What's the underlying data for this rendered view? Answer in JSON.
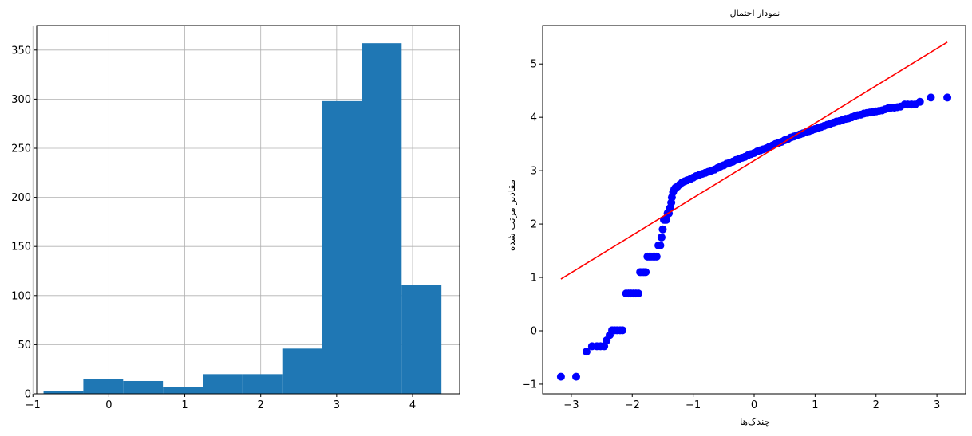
{
  "chart_data": [
    {
      "type": "bar",
      "kind": "histogram",
      "title": "",
      "xlabel": "",
      "ylabel": "",
      "grid": true,
      "xlim": [
        -0.95,
        4.62
      ],
      "ylim": [
        0,
        375
      ],
      "xticks": [
        -1,
        0,
        1,
        2,
        3,
        4
      ],
      "xtick_labels": [
        "−1",
        "0",
        "1",
        "2",
        "3",
        "4"
      ],
      "yticks": [
        0,
        50,
        100,
        150,
        200,
        250,
        300,
        350
      ],
      "ytick_labels": [
        "0",
        "50",
        "100",
        "150",
        "200",
        "250",
        "300",
        "350"
      ],
      "color": "#1f77b4",
      "bin_edges": [
        -0.86,
        -0.336,
        0.188,
        0.712,
        1.236,
        1.76,
        2.284,
        2.808,
        3.332,
        3.856,
        4.38
      ],
      "values": [
        3,
        15,
        13,
        7,
        20,
        20,
        46,
        298,
        357,
        111
      ]
    },
    {
      "type": "scatter",
      "kind": "probability-plot",
      "title": "نمودار احتمال",
      "xlabel": "چندک‌ها",
      "ylabel": "مقادیر مرتب شده",
      "grid": false,
      "xlim": [
        -3.47,
        3.47
      ],
      "ylim": [
        -1.18,
        5.72
      ],
      "xticks": [
        -3,
        -2,
        -1,
        0,
        1,
        2,
        3
      ],
      "xtick_labels": [
        "−3",
        "−2",
        "−1",
        "0",
        "1",
        "2",
        "3"
      ],
      "yticks": [
        -1,
        0,
        1,
        2,
        3,
        4,
        5
      ],
      "ytick_labels": [
        "−1",
        "0",
        "1",
        "2",
        "3",
        "4",
        "5"
      ],
      "marker_color": "#0000ff",
      "line_color": "#ff0000",
      "fit_line": {
        "x": [
          -3.17,
          3.17
        ],
        "y": [
          0.97,
          5.41
        ]
      },
      "points": [
        [
          -3.17,
          -0.86
        ],
        [
          -2.92,
          -0.86
        ],
        [
          -2.75,
          -0.39
        ],
        [
          -2.66,
          -0.29
        ],
        [
          -2.58,
          -0.29
        ],
        [
          -2.52,
          -0.29
        ],
        [
          -2.46,
          -0.29
        ],
        [
          -2.42,
          -0.18
        ],
        [
          -2.37,
          -0.08
        ],
        [
          -2.33,
          0.01
        ],
        [
          -2.29,
          0.01
        ],
        [
          -2.25,
          0.01
        ],
        [
          -2.2,
          0.01
        ],
        [
          -2.16,
          0.01
        ],
        [
          -2.1,
          0.7
        ],
        [
          -2.06,
          0.7
        ],
        [
          -2.02,
          0.7
        ],
        [
          -1.98,
          0.7
        ],
        [
          -1.94,
          0.7
        ],
        [
          -1.9,
          0.7
        ],
        [
          -1.87,
          1.1
        ],
        [
          -1.84,
          1.1
        ],
        [
          -1.81,
          1.1
        ],
        [
          -1.78,
          1.1
        ],
        [
          -1.75,
          1.39
        ],
        [
          -1.72,
          1.39
        ],
        [
          -1.69,
          1.39
        ],
        [
          -1.66,
          1.39
        ],
        [
          -1.63,
          1.39
        ],
        [
          -1.6,
          1.39
        ],
        [
          -1.57,
          1.6
        ],
        [
          -1.54,
          1.6
        ],
        [
          -1.52,
          1.75
        ],
        [
          -1.5,
          1.9
        ],
        [
          -1.48,
          2.08
        ],
        [
          -1.46,
          2.08
        ],
        [
          -1.44,
          2.08
        ],
        [
          -1.42,
          2.2
        ],
        [
          -1.4,
          2.2
        ],
        [
          -1.38,
          2.3
        ],
        [
          -1.36,
          2.4
        ],
        [
          -1.35,
          2.5
        ],
        [
          -1.33,
          2.6
        ],
        [
          -1.31,
          2.65
        ],
        [
          -1.29,
          2.68
        ],
        [
          -1.26,
          2.7
        ],
        [
          -1.22,
          2.74
        ],
        [
          -1.18,
          2.78
        ],
        [
          -1.14,
          2.8
        ],
        [
          -1.1,
          2.82
        ],
        [
          -1.05,
          2.84
        ],
        [
          -1.0,
          2.87
        ],
        [
          -0.95,
          2.9
        ],
        [
          -0.9,
          2.92
        ],
        [
          -0.85,
          2.94
        ],
        [
          -0.8,
          2.96
        ],
        [
          -0.75,
          2.98
        ],
        [
          -0.7,
          3.0
        ],
        [
          -0.65,
          3.02
        ],
        [
          -0.6,
          3.05
        ],
        [
          -0.55,
          3.08
        ],
        [
          -0.5,
          3.1
        ],
        [
          -0.45,
          3.13
        ],
        [
          -0.4,
          3.15
        ],
        [
          -0.35,
          3.17
        ],
        [
          -0.3,
          3.2
        ],
        [
          -0.25,
          3.22
        ],
        [
          -0.2,
          3.24
        ],
        [
          -0.15,
          3.26
        ],
        [
          -0.1,
          3.29
        ],
        [
          -0.05,
          3.31
        ],
        [
          0.0,
          3.33
        ],
        [
          0.05,
          3.36
        ],
        [
          0.1,
          3.38
        ],
        [
          0.15,
          3.4
        ],
        [
          0.2,
          3.42
        ],
        [
          0.25,
          3.45
        ],
        [
          0.3,
          3.47
        ],
        [
          0.35,
          3.5
        ],
        [
          0.4,
          3.52
        ],
        [
          0.45,
          3.54
        ],
        [
          0.5,
          3.57
        ],
        [
          0.55,
          3.59
        ],
        [
          0.6,
          3.62
        ],
        [
          0.65,
          3.64
        ],
        [
          0.7,
          3.66
        ],
        [
          0.75,
          3.68
        ],
        [
          0.8,
          3.7
        ],
        [
          0.85,
          3.72
        ],
        [
          0.9,
          3.74
        ],
        [
          0.95,
          3.76
        ],
        [
          1.0,
          3.78
        ],
        [
          1.05,
          3.8
        ],
        [
          1.1,
          3.82
        ],
        [
          1.15,
          3.84
        ],
        [
          1.2,
          3.86
        ],
        [
          1.25,
          3.88
        ],
        [
          1.3,
          3.9
        ],
        [
          1.35,
          3.92
        ],
        [
          1.4,
          3.93
        ],
        [
          1.45,
          3.95
        ],
        [
          1.5,
          3.97
        ],
        [
          1.55,
          3.98
        ],
        [
          1.6,
          4.0
        ],
        [
          1.65,
          4.02
        ],
        [
          1.7,
          4.04
        ],
        [
          1.75,
          4.05
        ],
        [
          1.8,
          4.07
        ],
        [
          1.85,
          4.08
        ],
        [
          1.9,
          4.09
        ],
        [
          1.95,
          4.1
        ],
        [
          2.0,
          4.11
        ],
        [
          2.05,
          4.12
        ],
        [
          2.1,
          4.13
        ],
        [
          2.15,
          4.15
        ],
        [
          2.2,
          4.17
        ],
        [
          2.25,
          4.18
        ],
        [
          2.3,
          4.18
        ],
        [
          2.35,
          4.19
        ],
        [
          2.4,
          4.2
        ],
        [
          2.47,
          4.24
        ],
        [
          2.52,
          4.24
        ],
        [
          2.58,
          4.24
        ],
        [
          2.64,
          4.24
        ],
        [
          2.72,
          4.29
        ],
        [
          2.9,
          4.37
        ],
        [
          3.17,
          4.37
        ]
      ]
    }
  ]
}
